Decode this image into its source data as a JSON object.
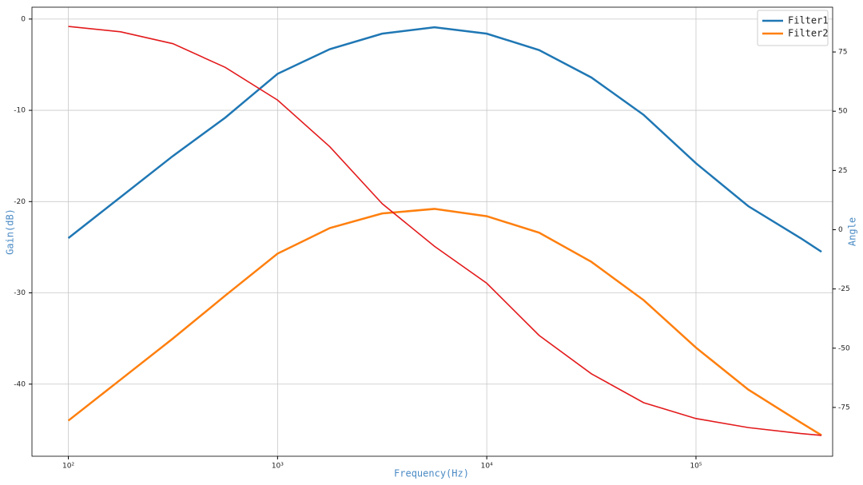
{
  "chart_data": {
    "type": "line",
    "xlabel": "Frequency(Hz)",
    "ylabel": "Gain(dB)",
    "y2label": "Angle",
    "xscale": "log",
    "grid": true,
    "legend": "upper right",
    "x": [
      100,
      177.8,
      316.2,
      562.3,
      1000,
      1778,
      3162,
      5623,
      10000,
      17783,
      31623,
      56234,
      100000,
      177828,
      316228,
      398107
    ],
    "series": [
      {
        "name": "Filter1",
        "color": "#1f77b4",
        "linewidth": 2.5,
        "values": [
          -24.0,
          -19.5,
          -15.0,
          -10.8,
          -6.0,
          -3.3,
          -1.6,
          -0.9,
          -1.6,
          -3.4,
          -6.4,
          -10.5,
          -15.8,
          -20.5,
          -24.0,
          -25.5
        ]
      },
      {
        "name": "Filter2",
        "color": "#ff7f0e",
        "linewidth": 2.5,
        "values": [
          -44.0,
          -39.5,
          -35.0,
          -30.3,
          -25.7,
          -22.9,
          -21.3,
          -20.8,
          -21.6,
          -23.4,
          -26.6,
          -30.8,
          -36.0,
          -40.6,
          -44.2,
          -45.6
        ]
      },
      {
        "color": "#e31a1c",
        "linewidth": 1.6,
        "axis": "y2",
        "values": [
          85.8,
          83.5,
          78.5,
          68.5,
          54.7,
          35,
          11,
          -7,
          -22.6,
          -44.6,
          -60.8,
          -73,
          -79.7,
          -83.5,
          -86,
          -86.8
        ]
      }
    ],
    "xlim": [
      67,
      450000
    ],
    "xticks": [
      {
        "value": 100,
        "label": "10²"
      },
      {
        "value": 1000,
        "label": "10³"
      },
      {
        "value": 10000,
        "label": "10⁴"
      },
      {
        "value": 100000,
        "label": "10⁵"
      }
    ],
    "ylim": [
      -47.9,
      1.3
    ],
    "yticks": [
      -40,
      -30,
      -20,
      -10,
      0
    ],
    "y2lim": [
      -95.6,
      93.9
    ],
    "y2ticks": [
      -75,
      -50,
      -25,
      0,
      25,
      50,
      75
    ]
  }
}
